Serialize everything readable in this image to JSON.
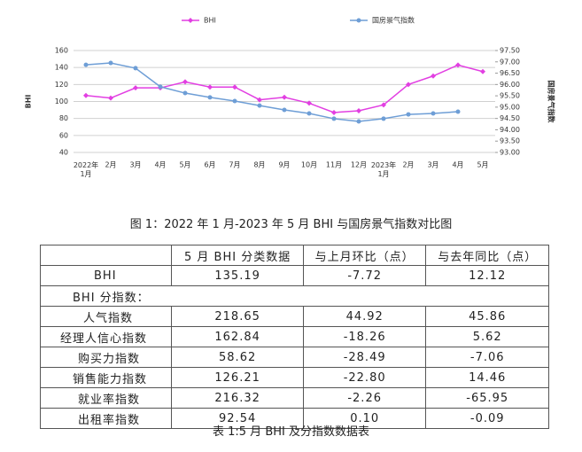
{
  "chart_data": {
    "type": "line",
    "categories": [
      "2022年\n1月",
      "2月",
      "3月",
      "4月",
      "5月",
      "6月",
      "7月",
      "8月",
      "9月",
      "10月",
      "11月",
      "12月",
      "2023年\n1月",
      "2月",
      "3月",
      "4月",
      "5月"
    ],
    "series": [
      {
        "name": "BHI",
        "color": "#e23fe2",
        "values": [
          107,
          104,
          116,
          116,
          123.07,
          117,
          117,
          102,
          105,
          98,
          87,
          89,
          96,
          120,
          130,
          142.91,
          135.19
        ]
      },
      {
        "name": "国房景气指数",
        "color": "#6e9ed6",
        "axis": "y2",
        "values": [
          96.87,
          96.95,
          96.72,
          95.9,
          95.62,
          95.43,
          95.27,
          95.07,
          94.88,
          94.72,
          94.49,
          94.37,
          94.49,
          94.68,
          94.72,
          94.8,
          null
        ]
      }
    ],
    "ylabel": "BHI",
    "y2label": "国房景气指数",
    "ylim": [
      40,
      160
    ],
    "yticks": [
      40,
      60,
      80,
      100,
      120,
      140,
      160
    ],
    "y2lim": [
      93,
      97.5
    ],
    "y2ticks": [
      {
        "value": 93,
        "label": "93.00"
      },
      {
        "value": 93.5,
        "label": "93.50"
      },
      {
        "value": 94,
        "label": "94.00"
      },
      {
        "value": 94.5,
        "label": "94.50"
      },
      {
        "value": 95,
        "label": "95.00"
      },
      {
        "value": 95.5,
        "label": "95.50"
      },
      {
        "value": 96,
        "label": "96.00"
      },
      {
        "value": 96.5,
        "label": "96.50"
      },
      {
        "value": 97,
        "label": "97.00"
      },
      {
        "value": 97.5,
        "label": "97.50"
      }
    ],
    "grid": true,
    "legend": "top"
  },
  "figure_caption": "图 1：2022 年 1 月-2023 年 5 月 BHI 与国房景气指数对比图",
  "table": {
    "header": [
      "5 月 BHI 分类数据",
      "与上月环比（点）",
      "与去年同比（点）"
    ],
    "rows": [
      [
        "BHI",
        "135.19",
        "-7.72",
        "12.12"
      ],
      [
        "BHI 分指数："
      ],
      [
        "人气指数",
        "218.65",
        "44.92",
        "45.86"
      ],
      [
        "经理人信心指数",
        "162.84",
        "-18.26",
        "5.62"
      ],
      [
        "购买力指数",
        "58.62",
        "-28.49",
        "-7.06"
      ],
      [
        "销售能力指数",
        "126.21",
        "-22.80",
        "14.46"
      ],
      [
        "就业率指数",
        "216.32",
        "-2.26",
        "-65.95"
      ],
      [
        "出租率指数",
        "92.54",
        "0.10",
        "-0.09"
      ]
    ]
  },
  "table_caption": "表 1:5 月 BHI 及分指数数据表"
}
